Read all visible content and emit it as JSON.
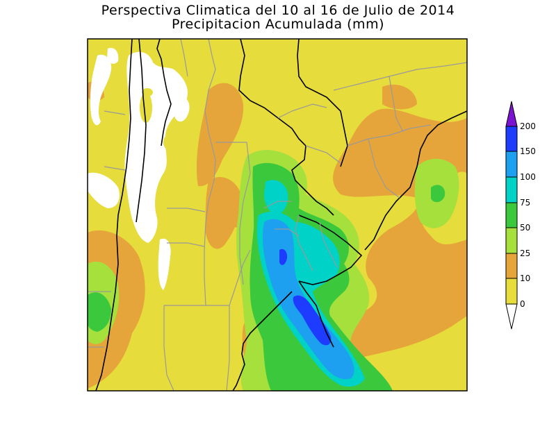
{
  "title": {
    "line1": "Perspectiva Climatica del 10 al 16 de Julio de 2014",
    "line2": "Precipitacion Acumulada (mm)"
  },
  "colors": {
    "bin_0_10": "#e6dc3c",
    "bin_10_25": "#e6a53a",
    "bin_25_50": "#a6e03c",
    "bin_50_75": "#3cc83c",
    "bin_75_100": "#00d2c8",
    "bin_100_150": "#1ea0f0",
    "bin_150_200": "#1e3cff",
    "bin_over_200": "#7a14d2",
    "no_data": "#ffffff",
    "coast": "#000000",
    "borders": "#999999"
  },
  "legend": {
    "ticks": [
      "200",
      "150",
      "100",
      "75",
      "50",
      "25",
      "10",
      "0"
    ]
  }
}
